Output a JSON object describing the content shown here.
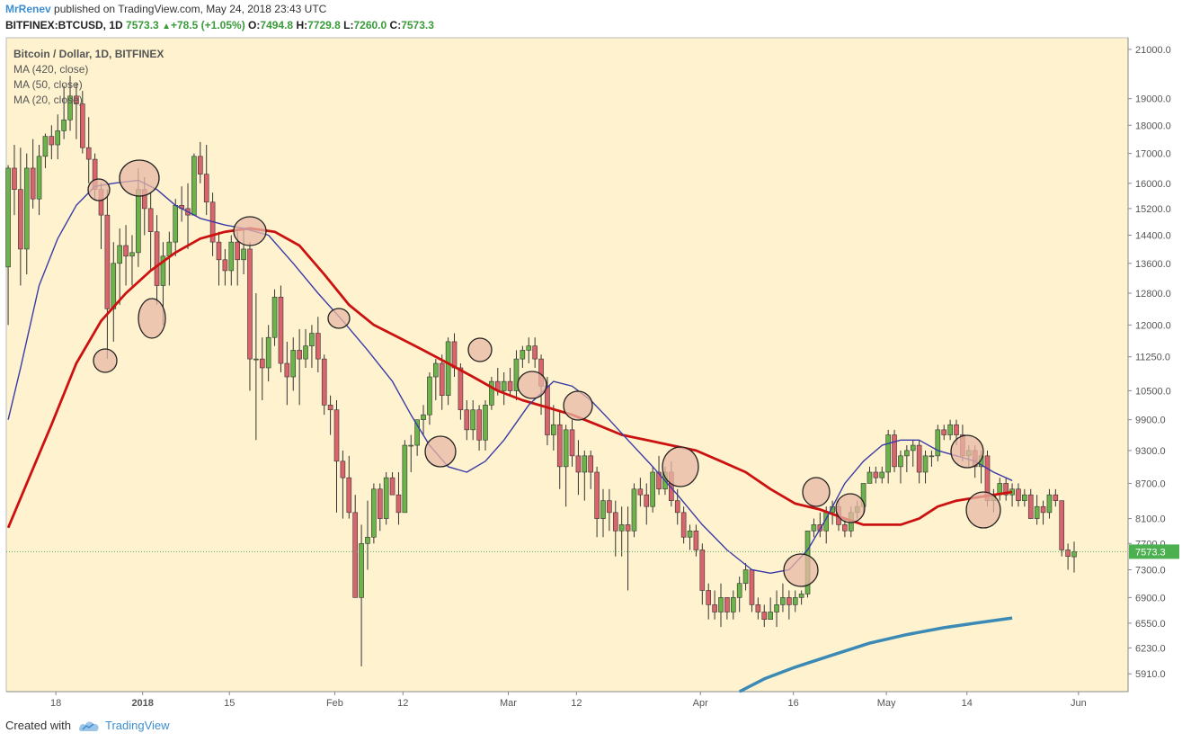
{
  "header": {
    "author": "MrRenev",
    "published_text": " published on TradingView.com, May 24, 2018 23:43 UTC",
    "symbol": "BITFINEX:BTCUSD, 1D",
    "last": "7573.3",
    "change_arrow": "▲",
    "change": "+78.5 (+1.05%)",
    "o_label": "O:",
    "o_value": "7494.8",
    "h_label": "H:",
    "h_value": "7729.8",
    "l_label": "L:",
    "l_value": "7260.0",
    "c_label": "C:",
    "c_value": "7573.3"
  },
  "legend": {
    "title": "Bitcoin / Dollar, 1D, BITFINEX",
    "ma420": "MA (420, close)",
    "ma50": "MA (50, close)",
    "ma20": "MA (20, close)"
  },
  "footer": {
    "created_with": "Created with",
    "brand": "TradingView",
    "logo_icon": "tradingview-cloud-icon"
  },
  "colors": {
    "plot_bg": "#fff3cf",
    "up": "#6bb34a",
    "down": "#d9646b",
    "ma420": "#3b8ab5",
    "ma50": "#cc1111",
    "ma20": "#3a3aa8",
    "circle_fill": "#e8b8a6",
    "last_label_bg": "#4caf50"
  },
  "chart_data": {
    "type": "candlestick",
    "symbol": "BTCUSD",
    "interval": "1D",
    "y_scale": "log",
    "ylim": [
      5700,
      21500
    ],
    "y_ticks": [
      "21000.0",
      "19000.0",
      "18000.0",
      "17000.0",
      "16000.0",
      "15200.0",
      "14400.0",
      "13600.0",
      "12800.0",
      "12000.0",
      "11250.0",
      "10500.0",
      "9900.0",
      "9300.0",
      "8700.0",
      "8100.0",
      "7700.0",
      "7300.0",
      "6900.0",
      "6550.0",
      "6230.0",
      "5910.0"
    ],
    "last_price_label": "7573.3",
    "x_range": [
      "2017-12-10",
      "2018-06-09"
    ],
    "x_ticks": [
      {
        "label": "18",
        "date": "2017-12-18"
      },
      {
        "label": "2018",
        "date": "2018-01-01"
      },
      {
        "label": "15",
        "date": "2018-01-15"
      },
      {
        "label": "Feb",
        "date": "2018-02-01"
      },
      {
        "label": "12",
        "date": "2018-02-12"
      },
      {
        "label": "Mar",
        "date": "2018-03-01"
      },
      {
        "label": "12",
        "date": "2018-03-12"
      },
      {
        "label": "Apr",
        "date": "2018-04-01"
      },
      {
        "label": "16",
        "date": "2018-04-16"
      },
      {
        "label": "May",
        "date": "2018-05-01"
      },
      {
        "label": "14",
        "date": "2018-05-14"
      },
      {
        "label": "Jun",
        "date": "2018-06-01"
      }
    ],
    "first_candle_date": "2017-12-10",
    "candles": [
      [
        13500,
        16600,
        12000,
        16500
      ],
      [
        16500,
        17300,
        15000,
        15800
      ],
      [
        15800,
        17200,
        13000,
        14000
      ],
      [
        14000,
        17000,
        13300,
        16500
      ],
      [
        16500,
        17500,
        15200,
        15500
      ],
      [
        15500,
        17300,
        15000,
        16900
      ],
      [
        16900,
        17700,
        16500,
        17600
      ],
      [
        17600,
        18000,
        16800,
        17300
      ],
      [
        17300,
        18400,
        16800,
        17800
      ],
      [
        17800,
        19500,
        17500,
        18200
      ],
      [
        18200,
        19900,
        17800,
        19100
      ],
      [
        19100,
        19600,
        17500,
        18800
      ],
      [
        18800,
        19300,
        17000,
        17200
      ],
      [
        17200,
        18300,
        16000,
        16800
      ],
      [
        16800,
        17000,
        15500,
        15800
      ],
      [
        15800,
        16000,
        14000,
        15000
      ],
      [
        15000,
        15800,
        11200,
        12400
      ],
      [
        12400,
        14200,
        11600,
        13600
      ],
      [
        13600,
        14600,
        12500,
        14100
      ],
      [
        14100,
        14700,
        13000,
        13800
      ],
      [
        13800,
        14400,
        13000,
        13900
      ],
      [
        13900,
        16500,
        13500,
        15800
      ],
      [
        15800,
        16200,
        14400,
        15200
      ],
      [
        15200,
        15700,
        13400,
        14500
      ],
      [
        14500,
        15000,
        12500,
        13000
      ],
      [
        13000,
        14200,
        12000,
        13800
      ],
      [
        13800,
        14500,
        13000,
        14200
      ],
      [
        14200,
        15500,
        13800,
        15300
      ],
      [
        15300,
        15900,
        14800,
        15200
      ],
      [
        15200,
        16000,
        14000,
        15000
      ],
      [
        15000,
        17000,
        15000,
        16900
      ],
      [
        16900,
        17400,
        16000,
        16300
      ],
      [
        16300,
        17300,
        15000,
        15400
      ],
      [
        15400,
        15700,
        13800,
        14200
      ],
      [
        14200,
        14500,
        13000,
        13700
      ],
      [
        13700,
        14000,
        13000,
        13400
      ],
      [
        13400,
        14400,
        13000,
        14200
      ],
      [
        14200,
        14500,
        13000,
        13700
      ],
      [
        13700,
        14600,
        13300,
        14000
      ],
      [
        14000,
        14200,
        10500,
        11200
      ],
      [
        11200,
        12800,
        9500,
        11200
      ],
      [
        11200,
        11700,
        10300,
        11000
      ],
      [
        11000,
        12000,
        10700,
        11700
      ],
      [
        11700,
        12900,
        11500,
        12700
      ],
      [
        12700,
        13000,
        10900,
        11100
      ],
      [
        11100,
        11600,
        10200,
        10800
      ],
      [
        10800,
        11700,
        10500,
        11400
      ],
      [
        11400,
        11900,
        10200,
        11200
      ],
      [
        11200,
        11900,
        11000,
        11500
      ],
      [
        11500,
        12000,
        11000,
        11800
      ],
      [
        11800,
        12200,
        10900,
        11200
      ],
      [
        11200,
        11300,
        10000,
        10200
      ],
      [
        10200,
        10400,
        9600,
        10100
      ],
      [
        10100,
        10300,
        8200,
        9100
      ],
      [
        9100,
        9300,
        8100,
        8800
      ],
      [
        8800,
        9200,
        8100,
        8200
      ],
      [
        8200,
        8500,
        6900,
        6900
      ],
      [
        6900,
        8000,
        6000,
        7700
      ],
      [
        7700,
        8400,
        7300,
        7800
      ],
      [
        7800,
        8700,
        7700,
        8600
      ],
      [
        8600,
        8700,
        7900,
        8100
      ],
      [
        8100,
        8900,
        8000,
        8800
      ],
      [
        8800,
        8900,
        8500,
        8500
      ],
      [
        8500,
        8900,
        8000,
        8200
      ],
      [
        8200,
        9500,
        8200,
        9400
      ],
      [
        9400,
        9600,
        8900,
        9400
      ],
      [
        9400,
        9900,
        9200,
        9900
      ],
      [
        9900,
        10200,
        9600,
        10000
      ],
      [
        10000,
        10900,
        9800,
        10800
      ],
      [
        10800,
        11200,
        10300,
        11100
      ],
      [
        11100,
        11300,
        10100,
        10400
      ],
      [
        10400,
        11700,
        10200,
        11600
      ],
      [
        11600,
        11800,
        10800,
        11000
      ],
      [
        11000,
        11100,
        9900,
        10100
      ],
      [
        10100,
        10300,
        9500,
        9700
      ],
      [
        9700,
        10300,
        9500,
        10100
      ],
      [
        10100,
        10200,
        9300,
        9500
      ],
      [
        9500,
        10300,
        9300,
        10200
      ],
      [
        10200,
        10800,
        10100,
        10700
      ],
      [
        10700,
        11000,
        10400,
        10500
      ],
      [
        10500,
        10900,
        10200,
        10700
      ],
      [
        10700,
        11000,
        10400,
        10500
      ],
      [
        10500,
        11400,
        10300,
        11200
      ],
      [
        11200,
        11500,
        11000,
        11400
      ],
      [
        11400,
        11700,
        11100,
        11500
      ],
      [
        11500,
        11700,
        11000,
        11200
      ],
      [
        11200,
        11300,
        10000,
        10600
      ],
      [
        10600,
        10800,
        9400,
        9600
      ],
      [
        9600,
        10200,
        9300,
        9800
      ],
      [
        9800,
        10100,
        8600,
        9000
      ],
      [
        9000,
        9800,
        8300,
        9700
      ],
      [
        9700,
        9900,
        9000,
        9200
      ],
      [
        9200,
        9500,
        8500,
        8900
      ],
      [
        8900,
        9300,
        8400,
        9200
      ],
      [
        9200,
        9300,
        8600,
        8900
      ],
      [
        8900,
        9000,
        7800,
        8100
      ],
      [
        8100,
        8600,
        7800,
        8400
      ],
      [
        8400,
        8600,
        7900,
        8200
      ],
      [
        8200,
        8400,
        7500,
        7900
      ],
      [
        7900,
        8300,
        7500,
        8000
      ],
      [
        8000,
        8300,
        7000,
        7900
      ],
      [
        7900,
        8700,
        7800,
        8600
      ],
      [
        8600,
        8800,
        8300,
        8500
      ],
      [
        8500,
        8700,
        8000,
        8300
      ],
      [
        8300,
        9000,
        8200,
        8900
      ],
      [
        8900,
        9200,
        8500,
        8600
      ],
      [
        8600,
        9000,
        8500,
        8900
      ],
      [
        8900,
        9100,
        8300,
        8400
      ],
      [
        8400,
        8600,
        8000,
        8200
      ],
      [
        8200,
        8300,
        7700,
        7800
      ],
      [
        7800,
        8000,
        7600,
        7900
      ],
      [
        7900,
        8000,
        7500,
        7600
      ],
      [
        7600,
        7700,
        6800,
        7000
      ],
      [
        7000,
        7100,
        6600,
        6800
      ],
      [
        6800,
        7000,
        6600,
        6700
      ],
      [
        6700,
        7100,
        6500,
        6900
      ],
      [
        6900,
        6900,
        6600,
        6700
      ],
      [
        6700,
        7000,
        6600,
        6900
      ],
      [
        6900,
        7200,
        6700,
        7100
      ],
      [
        7100,
        7400,
        7000,
        7300
      ],
      [
        7300,
        7300,
        6700,
        6800
      ],
      [
        6800,
        6900,
        6600,
        6700
      ],
      [
        6700,
        6800,
        6500,
        6600
      ],
      [
        6600,
        6900,
        6600,
        6700
      ],
      [
        6700,
        7000,
        6500,
        6800
      ],
      [
        6800,
        7100,
        6700,
        6900
      ],
      [
        6900,
        7000,
        6600,
        6800
      ],
      [
        6800,
        7000,
        6700,
        6900
      ],
      [
        6900,
        7000,
        6800,
        6950
      ],
      [
        6950,
        7900,
        6900,
        7900
      ],
      [
        7900,
        8100,
        7800,
        8000
      ],
      [
        8000,
        8200,
        7800,
        7900
      ],
      [
        7900,
        8300,
        7700,
        8200
      ],
      [
        8200,
        8400,
        8000,
        8300
      ],
      [
        8300,
        8400,
        7900,
        8000
      ],
      [
        8000,
        8100,
        7800,
        7900
      ],
      [
        7900,
        8300,
        7800,
        8200
      ],
      [
        8200,
        8400,
        8100,
        8300
      ],
      [
        8300,
        8700,
        8200,
        8700
      ],
      [
        8700,
        9000,
        8700,
        8900
      ],
      [
        8900,
        9000,
        8700,
        8800
      ],
      [
        8800,
        9000,
        8700,
        8900
      ],
      [
        8900,
        9700,
        8700,
        9600
      ],
      [
        9600,
        9700,
        8900,
        9000
      ],
      [
        9000,
        9300,
        8700,
        9200
      ],
      [
        9200,
        9400,
        8900,
        9300
      ],
      [
        9300,
        9500,
        9000,
        9400
      ],
      [
        9400,
        9500,
        8700,
        8900
      ],
      [
        8900,
        9300,
        8700,
        9200
      ],
      [
        9200,
        9300,
        9000,
        9200
      ],
      [
        9200,
        9800,
        9100,
        9700
      ],
      [
        9700,
        9800,
        9500,
        9600
      ],
      [
        9600,
        9900,
        9500,
        9800
      ],
      [
        9800,
        9900,
        9400,
        9600
      ],
      [
        9600,
        9800,
        9100,
        9200
      ],
      [
        9200,
        9400,
        9000,
        9300
      ],
      [
        9300,
        9400,
        8800,
        9000
      ],
      [
        9000,
        9300,
        8700,
        9200
      ],
      [
        9200,
        9300,
        8300,
        8400
      ],
      [
        8400,
        8600,
        8200,
        8500
      ],
      [
        8500,
        8800,
        8400,
        8700
      ],
      [
        8700,
        8800,
        8400,
        8500
      ],
      [
        8500,
        8700,
        8300,
        8600
      ],
      [
        8600,
        8700,
        8300,
        8400
      ],
      [
        8400,
        8600,
        8300,
        8500
      ],
      [
        8500,
        8600,
        8100,
        8100
      ],
      [
        8100,
        8500,
        8000,
        8300
      ],
      [
        8300,
        8400,
        8000,
        8200
      ],
      [
        8200,
        8600,
        8100,
        8500
      ],
      [
        8500,
        8600,
        8300,
        8400
      ],
      [
        8400,
        8400,
        7500,
        7600
      ],
      [
        7600,
        7700,
        7300,
        7500
      ],
      [
        7494.8,
        7729.8,
        7260,
        7573.3
      ]
    ],
    "ma20": [
      [
        0,
        9900
      ],
      [
        2,
        11000
      ],
      [
        5,
        13000
      ],
      [
        8,
        14300
      ],
      [
        11,
        15300
      ],
      [
        14,
        15900
      ],
      [
        17,
        16000
      ],
      [
        21,
        16100
      ],
      [
        24,
        15800
      ],
      [
        27,
        15300
      ],
      [
        31,
        14900
      ],
      [
        35,
        14700
      ],
      [
        38,
        14600
      ],
      [
        42,
        14400
      ],
      [
        46,
        13600
      ],
      [
        50,
        12800
      ],
      [
        54,
        12100
      ],
      [
        58,
        11400
      ],
      [
        62,
        10700
      ],
      [
        65,
        10000
      ],
      [
        68,
        9400
      ],
      [
        71,
        9000
      ],
      [
        74,
        8900
      ],
      [
        77,
        9100
      ],
      [
        80,
        9500
      ],
      [
        84,
        10200
      ],
      [
        88,
        10700
      ],
      [
        91,
        10600
      ],
      [
        94,
        10300
      ],
      [
        97,
        9900
      ],
      [
        100,
        9500
      ],
      [
        104,
        9000
      ],
      [
        108,
        8500
      ],
      [
        112,
        8000
      ],
      [
        116,
        7600
      ],
      [
        120,
        7300
      ],
      [
        123,
        7250
      ],
      [
        126,
        7300
      ],
      [
        129,
        7600
      ],
      [
        132,
        8100
      ],
      [
        135,
        8700
      ],
      [
        138,
        9100
      ],
      [
        141,
        9400
      ],
      [
        144,
        9500
      ],
      [
        147,
        9500
      ],
      [
        150,
        9300
      ],
      [
        153,
        9200
      ],
      [
        156,
        9100
      ],
      [
        159,
        8900
      ],
      [
        162,
        8750
      ]
    ],
    "ma50": [
      [
        0,
        7950
      ],
      [
        3,
        8700
      ],
      [
        7,
        9800
      ],
      [
        11,
        11100
      ],
      [
        15,
        12100
      ],
      [
        19,
        12800
      ],
      [
        23,
        13400
      ],
      [
        27,
        13900
      ],
      [
        31,
        14300
      ],
      [
        35,
        14500
      ],
      [
        39,
        14600
      ],
      [
        43,
        14500
      ],
      [
        47,
        14100
      ],
      [
        51,
        13300
      ],
      [
        55,
        12500
      ],
      [
        59,
        12000
      ],
      [
        63,
        11700
      ],
      [
        67,
        11400
      ],
      [
        71,
        11100
      ],
      [
        75,
        10800
      ],
      [
        79,
        10500
      ],
      [
        83,
        10300
      ],
      [
        87,
        10150
      ],
      [
        91,
        10000
      ],
      [
        95,
        9800
      ],
      [
        99,
        9600
      ],
      [
        103,
        9500
      ],
      [
        107,
        9400
      ],
      [
        111,
        9300
      ],
      [
        115,
        9100
      ],
      [
        119,
        8900
      ],
      [
        123,
        8600
      ],
      [
        127,
        8350
      ],
      [
        131,
        8250
      ],
      [
        135,
        8100
      ],
      [
        138,
        8000
      ],
      [
        141,
        8000
      ],
      [
        144,
        8000
      ],
      [
        147,
        8100
      ],
      [
        150,
        8300
      ],
      [
        153,
        8400
      ],
      [
        156,
        8450
      ],
      [
        159,
        8500
      ],
      [
        162,
        8550
      ]
    ],
    "ma420": [
      [
        118,
        5700
      ],
      [
        122,
        5850
      ],
      [
        127,
        5990
      ],
      [
        133,
        6140
      ],
      [
        139,
        6290
      ],
      [
        145,
        6400
      ],
      [
        151,
        6490
      ],
      [
        156,
        6550
      ],
      [
        162,
        6620
      ]
    ],
    "annotation_circles_count": 23
  }
}
